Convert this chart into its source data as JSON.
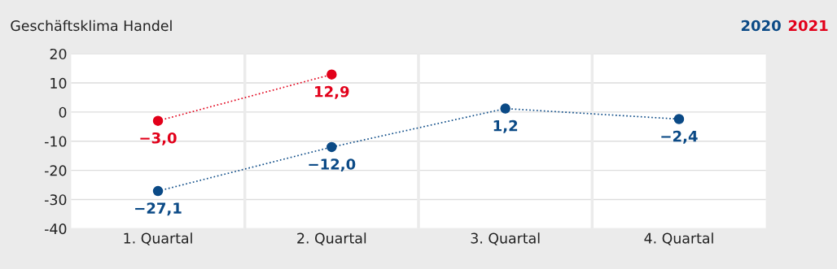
{
  "chart_data": {
    "type": "line",
    "title": "Geschäftsklima Handel",
    "categories": [
      "1. Quartal",
      "2. Quartal",
      "3. Quartal",
      "4. Quartal"
    ],
    "series": [
      {
        "name": "2020",
        "color": "#0b4a86",
        "values": [
          -27.1,
          -12.0,
          1.2,
          -2.4
        ],
        "value_labels": [
          "−27,1",
          "−12,0",
          "1,2",
          "−2,4"
        ]
      },
      {
        "name": "2021",
        "color": "#e2001a",
        "values": [
          -3.0,
          12.9,
          null,
          null
        ],
        "value_labels": [
          "−3,0",
          "12,9",
          null,
          null
        ]
      }
    ],
    "ylim": [
      -40,
      20
    ],
    "yticks": [
      -40,
      -30,
      -20,
      -10,
      0,
      10,
      20
    ],
    "grid": "y",
    "legend": "top right",
    "marker": "circle",
    "line_style": "dotted"
  }
}
